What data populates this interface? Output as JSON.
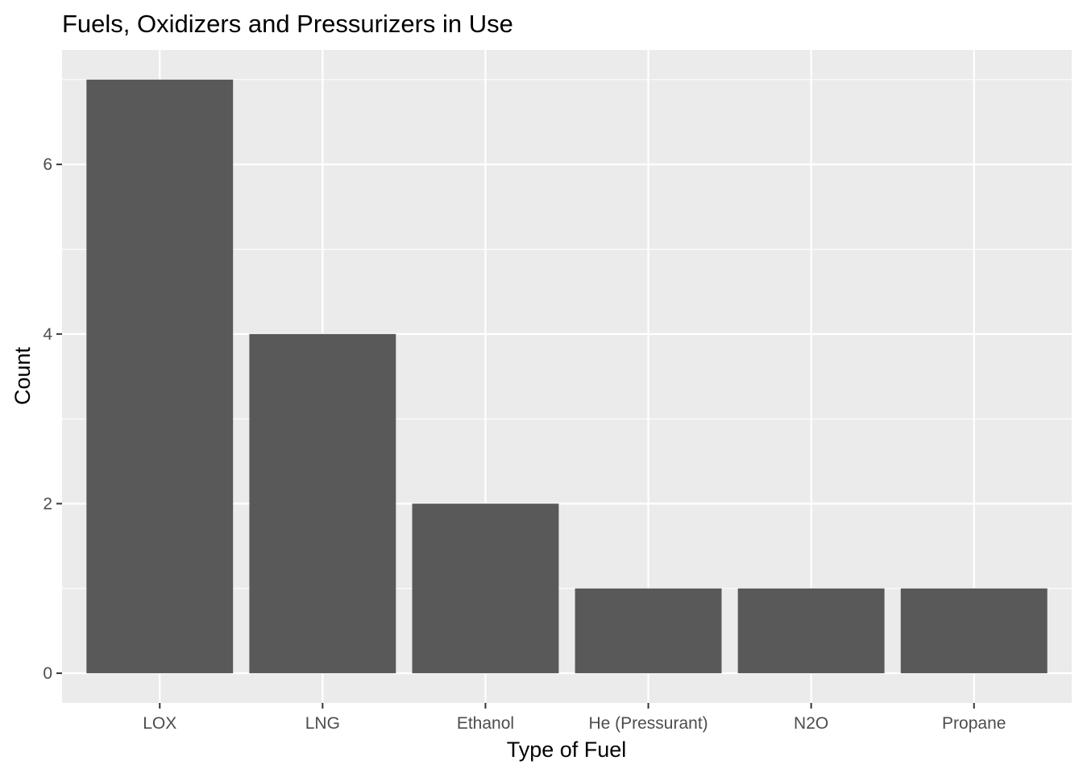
{
  "chart_data": {
    "type": "bar",
    "title": "Fuels, Oxidizers and Pressurizers in Use",
    "xlabel": "Type of Fuel",
    "ylabel": "Count",
    "categories": [
      "LOX",
      "LNG",
      "Ethanol",
      "He (Pressurant)",
      "N2O",
      "Propane"
    ],
    "values": [
      7,
      4,
      2,
      1,
      1,
      1
    ],
    "ylim": [
      -0.35,
      7.35
    ],
    "yticks": [
      0,
      2,
      4,
      6
    ],
    "ytick_labels": [
      "0",
      "2",
      "4",
      "6"
    ],
    "grid": true,
    "legend": "none",
    "colors": {
      "bar": "#595959",
      "panel": "#ebebeb",
      "grid": "#ffffff",
      "text": "#4d4d4d",
      "title": "#000000"
    }
  }
}
